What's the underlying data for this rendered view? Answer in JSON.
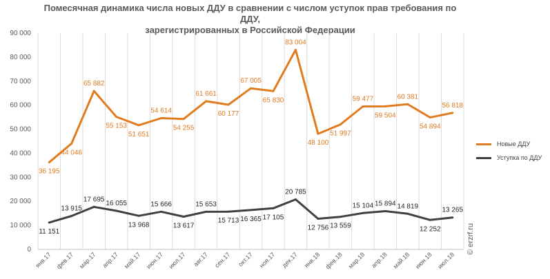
{
  "chart_data": {
    "type": "line",
    "title": [
      "Помесячная динамика числа новых ДДУ в сравнении с числом уступок прав требования по ДДУ,",
      "зарегистрированных в Российской Федерации"
    ],
    "categories": [
      "янв.17",
      "фев.17",
      "мар.17",
      "апр.17",
      "май.17",
      "июн.17",
      "июл.17",
      "авг.17",
      "сен.17",
      "окт.17",
      "ноя.17",
      "дек.17",
      "янв.18",
      "фев.18",
      "мар.18",
      "апр.18",
      "май.18",
      "июн.18",
      "июл.18"
    ],
    "ylim": [
      0,
      90000
    ],
    "yticks": [
      "0",
      "10 000",
      "20 000",
      "30 000",
      "40 000",
      "50 000",
      "60 000",
      "70 000",
      "80 000",
      "90 000"
    ],
    "grid": "vertical",
    "legend_position": "right",
    "series": [
      {
        "name": "Новые ДДУ",
        "color": "#E07B1F",
        "values": [
          36195,
          44046,
          65882,
          55153,
          51651,
          54614,
          54255,
          61661,
          60177,
          67005,
          65830,
          83004,
          48100,
          51997,
          59477,
          59504,
          60381,
          54894,
          56818
        ],
        "labels": [
          "36 195",
          "44 046",
          "65 882",
          "55 153",
          "51 651",
          "54 614",
          "54 255",
          "61 661",
          "60 177",
          "67 005",
          "65 830",
          "83 004",
          "48 100",
          "51 997",
          "59 477",
          "59 504",
          "60 381",
          "54 894",
          "56 818"
        ],
        "label_pos": [
          "below",
          "below",
          "above",
          "below",
          "below",
          "above",
          "below",
          "above",
          "below",
          "above",
          "below",
          "above",
          "below",
          "below",
          "above",
          "below",
          "above",
          "below",
          "above"
        ]
      },
      {
        "name": "Уступка по ДДУ",
        "color": "#404040",
        "values": [
          11151,
          13915,
          17695,
          16055,
          13968,
          15666,
          13617,
          15653,
          15713,
          16365,
          17105,
          20785,
          12756,
          13559,
          15104,
          15894,
          14819,
          12252,
          13265
        ],
        "labels": [
          "11 151",
          "13 915",
          "17 695",
          "16 055",
          "13 968",
          "15 666",
          "13 617",
          "15 653",
          "15 713",
          "16 365",
          "17 105",
          "20 785",
          "12 756",
          "13 559",
          "15 104",
          "15 894",
          "14 819",
          "12 252",
          "13 265"
        ],
        "label_pos": [
          "below",
          "above",
          "above",
          "above",
          "below",
          "above",
          "below",
          "above",
          "below",
          "below",
          "below",
          "above",
          "below",
          "below",
          "above",
          "above",
          "above",
          "below",
          "above"
        ]
      }
    ]
  },
  "watermark": "© erzrf.ru"
}
